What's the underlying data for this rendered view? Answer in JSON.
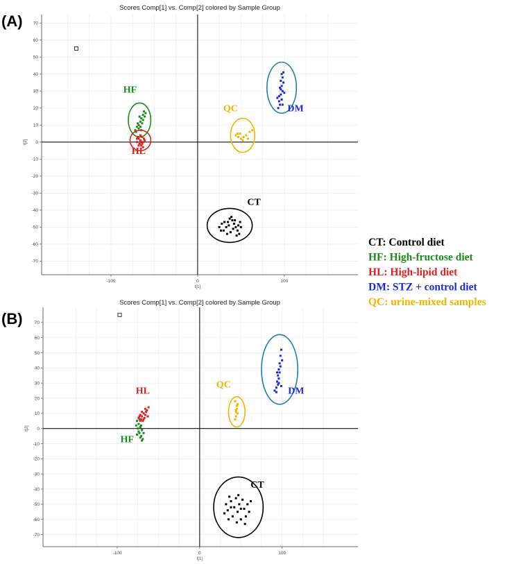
{
  "legend": [
    {
      "text": "CT: Control diet",
      "color": "#000000"
    },
    {
      "text": "HF: High-fructose diet",
      "color": "#1a8c1a"
    },
    {
      "text": "HL: High-lipid diet",
      "color": "#e02020"
    },
    {
      "text": "DM: STZ + control diet",
      "color": "#1a2ad8"
    },
    {
      "text": "QC: urine-mixed samples",
      "color": "#f0b400"
    }
  ],
  "chart_data": [
    {
      "type": "scatter",
      "panel_label": "(A)",
      "title": "Scores Comp[1] vs. Comp[2] colored by Sample Group",
      "xlabel": "t[1]",
      "ylabel": "t[2]",
      "xlim": [
        -180,
        185
      ],
      "ylim": [
        -78,
        75
      ],
      "x_ticks": [
        -100,
        0,
        100
      ],
      "y_ticks": [
        70,
        60,
        50,
        40,
        30,
        20,
        10,
        0,
        -10,
        -20,
        -30,
        -40,
        -50,
        -60,
        -70
      ],
      "grid": true,
      "outlier": {
        "x": -140,
        "y": 55
      },
      "groups": [
        {
          "name": "HF",
          "color": "#1a8c1a",
          "ellipse_color": "#1a8c1a",
          "center": [
            -67,
            13
          ],
          "radius": [
            13,
            10
          ],
          "label_pos": [
            -78,
            29
          ],
          "points": [
            [
              -72,
              7
            ],
            [
              -70,
              9
            ],
            [
              -68,
              10
            ],
            [
              -66,
              12
            ],
            [
              -65,
              14
            ],
            [
              -63,
              16
            ],
            [
              -62,
              18
            ],
            [
              -60,
              17
            ],
            [
              -64,
              11
            ],
            [
              -68,
              8
            ],
            [
              -71,
              6
            ],
            [
              -66,
              9
            ],
            [
              -63,
              13
            ],
            [
              -61,
              15
            ],
            [
              -69,
              11
            ],
            [
              -67,
              15
            ],
            [
              -65,
              7
            ]
          ]
        },
        {
          "name": "HL",
          "color": "#e02020",
          "ellipse_color": "#e02020",
          "center": [
            -66,
            1
          ],
          "radius": [
            12,
            6
          ],
          "label_pos": [
            -68,
            -7
          ],
          "points": [
            [
              -70,
              0
            ],
            [
              -68,
              2
            ],
            [
              -66,
              1
            ],
            [
              -64,
              3
            ],
            [
              -67,
              -1
            ],
            [
              -65,
              -2
            ],
            [
              -63,
              0
            ],
            [
              -69,
              3
            ],
            [
              -62,
              2
            ],
            [
              -66,
              4
            ],
            [
              -64,
              -1
            ],
            [
              -68,
              -2
            ],
            [
              -61,
              1
            ],
            [
              -70,
              2
            ],
            [
              -65,
              0
            ],
            [
              -63,
              -3
            ]
          ]
        },
        {
          "name": "QC",
          "color": "#f0b400",
          "ellipse_color": "#f0b400",
          "center": [
            52,
            4
          ],
          "radius": [
            14,
            10
          ],
          "label_pos": [
            38,
            18
          ],
          "points": [
            [
              44,
              4
            ],
            [
              47,
              3
            ],
            [
              50,
              2
            ],
            [
              53,
              3
            ],
            [
              56,
              4
            ],
            [
              60,
              6
            ],
            [
              63,
              7
            ],
            [
              49,
              5
            ],
            [
              52,
              1
            ],
            [
              58,
              2
            ],
            [
              46,
              5
            ]
          ]
        },
        {
          "name": "DM",
          "color": "#1a2ad8",
          "ellipse_color": "#1a7fb0",
          "center": [
            97,
            32
          ],
          "radius": [
            17,
            15
          ],
          "label_pos": [
            113,
            18
          ],
          "points": [
            [
              93,
              20
            ],
            [
              95,
              22
            ],
            [
              97,
              25
            ],
            [
              94,
              27
            ],
            [
              96,
              28
            ],
            [
              98,
              30
            ],
            [
              95,
              32
            ],
            [
              97,
              33
            ],
            [
              99,
              35
            ],
            [
              96,
              36
            ],
            [
              98,
              38
            ],
            [
              97,
              40
            ],
            [
              99,
              41
            ],
            [
              94,
              24
            ],
            [
              100,
              29
            ],
            [
              92,
              26
            ],
            [
              98,
              22
            ],
            [
              96,
              31
            ]
          ]
        },
        {
          "name": "CT",
          "color": "#000000",
          "ellipse_color": "#000000",
          "center": [
            37,
            -49
          ],
          "radius": [
            26,
            10
          ],
          "label_pos": [
            65,
            -37
          ],
          "points": [
            [
              25,
              -50
            ],
            [
              28,
              -48
            ],
            [
              30,
              -52
            ],
            [
              33,
              -50
            ],
            [
              35,
              -47
            ],
            [
              37,
              -45
            ],
            [
              40,
              -46
            ],
            [
              42,
              -48
            ],
            [
              44,
              -50
            ],
            [
              46,
              -52
            ],
            [
              48,
              -54
            ],
            [
              50,
              -50
            ],
            [
              38,
              -53
            ],
            [
              41,
              -51
            ],
            [
              36,
              -49
            ],
            [
              43,
              -46
            ],
            [
              27,
              -52
            ],
            [
              31,
              -47
            ],
            [
              47,
              -49
            ],
            [
              39,
              -44
            ],
            [
              45,
              -55
            ],
            [
              34,
              -54
            ],
            [
              49,
              -47
            ]
          ]
        }
      ]
    },
    {
      "type": "scatter",
      "panel_label": "(B)",
      "title": "Scores Comp[1] vs. Comp[2] colored by Sample Group",
      "xlabel": "t[1]",
      "ylabel": "t[2]",
      "xlim": [
        -190,
        192
      ],
      "ylim": [
        -78,
        80
      ],
      "x_ticks": [
        -100,
        0,
        100
      ],
      "y_ticks": [
        70,
        60,
        50,
        40,
        30,
        20,
        10,
        0,
        -10,
        -20,
        -30,
        -40,
        -50,
        -60,
        -70
      ],
      "grid": true,
      "outlier": {
        "x": -97,
        "y": 75
      },
      "groups": [
        {
          "name": "HF",
          "color": "#1a8c1a",
          "ellipse_color": null,
          "center": null,
          "radius": null,
          "label_pos": [
            -88,
            -9
          ],
          "points": [
            [
              -76,
              5
            ],
            [
              -74,
              3
            ],
            [
              -72,
              1
            ],
            [
              -70,
              -1
            ],
            [
              -73,
              -3
            ],
            [
              -71,
              -5
            ],
            [
              -69,
              -7
            ],
            [
              -74,
              -2
            ],
            [
              -76,
              -4
            ],
            [
              -72,
              -6
            ],
            [
              -68,
              -3
            ],
            [
              -75,
              0
            ],
            [
              -70,
              -8
            ],
            [
              -73,
              6
            ],
            [
              -71,
              2
            ],
            [
              -77,
              2
            ]
          ]
        },
        {
          "name": "HL",
          "color": "#e02020",
          "ellipse_color": null,
          "center": null,
          "radius": null,
          "label_pos": [
            -69,
            23
          ],
          "points": [
            [
              -74,
              7
            ],
            [
              -72,
              9
            ],
            [
              -70,
              8
            ],
            [
              -68,
              10
            ],
            [
              -66,
              9
            ],
            [
              -64,
              12
            ],
            [
              -62,
              14
            ],
            [
              -71,
              6
            ],
            [
              -69,
              5
            ],
            [
              -67,
              7
            ],
            [
              -65,
              11
            ],
            [
              -73,
              8
            ],
            [
              -70,
              11
            ],
            [
              -68,
              6
            ],
            [
              -63,
              8
            ],
            [
              -66,
              13
            ],
            [
              -72,
              5
            ]
          ]
        },
        {
          "name": "QC",
          "color": "#f0b400",
          "ellipse_color": "#f0b400",
          "center": [
            45,
            11
          ],
          "radius": [
            10,
            10
          ],
          "label_pos": [
            29,
            27
          ],
          "points": [
            [
              43,
              18
            ],
            [
              45,
              15
            ],
            [
              44,
              12
            ],
            [
              46,
              10
            ],
            [
              44,
              8
            ],
            [
              43,
              6
            ],
            [
              45,
              13
            ],
            [
              46,
              16
            ],
            [
              44,
              11
            ]
          ]
        },
        {
          "name": "DM",
          "color": "#1a2ad8",
          "ellipse_color": "#1a7fb0",
          "center": [
            97,
            39
          ],
          "radius": [
            22,
            23
          ],
          "label_pos": [
            117,
            23
          ],
          "points": [
            [
              91,
              25
            ],
            [
              93,
              27
            ],
            [
              95,
              29
            ],
            [
              94,
              31
            ],
            [
              96,
              33
            ],
            [
              95,
              35
            ],
            [
              97,
              37
            ],
            [
              96,
              39
            ],
            [
              98,
              41
            ],
            [
              97,
              43
            ],
            [
              98,
              48
            ],
            [
              99,
              52
            ],
            [
              93,
              24
            ],
            [
              100,
              45
            ],
            [
              94,
              37
            ],
            [
              96,
              30
            ],
            [
              99,
              28
            ]
          ]
        },
        {
          "name": "CT",
          "color": "#000000",
          "ellipse_color": "#000000",
          "center": [
            47,
            -52
          ],
          "radius": [
            30,
            20
          ],
          "label_pos": [
            70,
            -39
          ],
          "points": [
            [
              30,
              -56
            ],
            [
              32,
              -50
            ],
            [
              34,
              -54
            ],
            [
              36,
              -45
            ],
            [
              38,
              -48
            ],
            [
              40,
              -58
            ],
            [
              42,
              -52
            ],
            [
              44,
              -46
            ],
            [
              46,
              -55
            ],
            [
              48,
              -50
            ],
            [
              50,
              -60
            ],
            [
              52,
              -47
            ],
            [
              54,
              -53
            ],
            [
              56,
              -58
            ],
            [
              58,
              -50
            ],
            [
              60,
              -55
            ],
            [
              35,
              -60
            ],
            [
              45,
              -62
            ],
            [
              55,
              -63
            ],
            [
              38,
              -52
            ],
            [
              50,
              -53
            ],
            [
              62,
              -48
            ],
            [
              47,
              -44
            ]
          ]
        }
      ]
    }
  ]
}
